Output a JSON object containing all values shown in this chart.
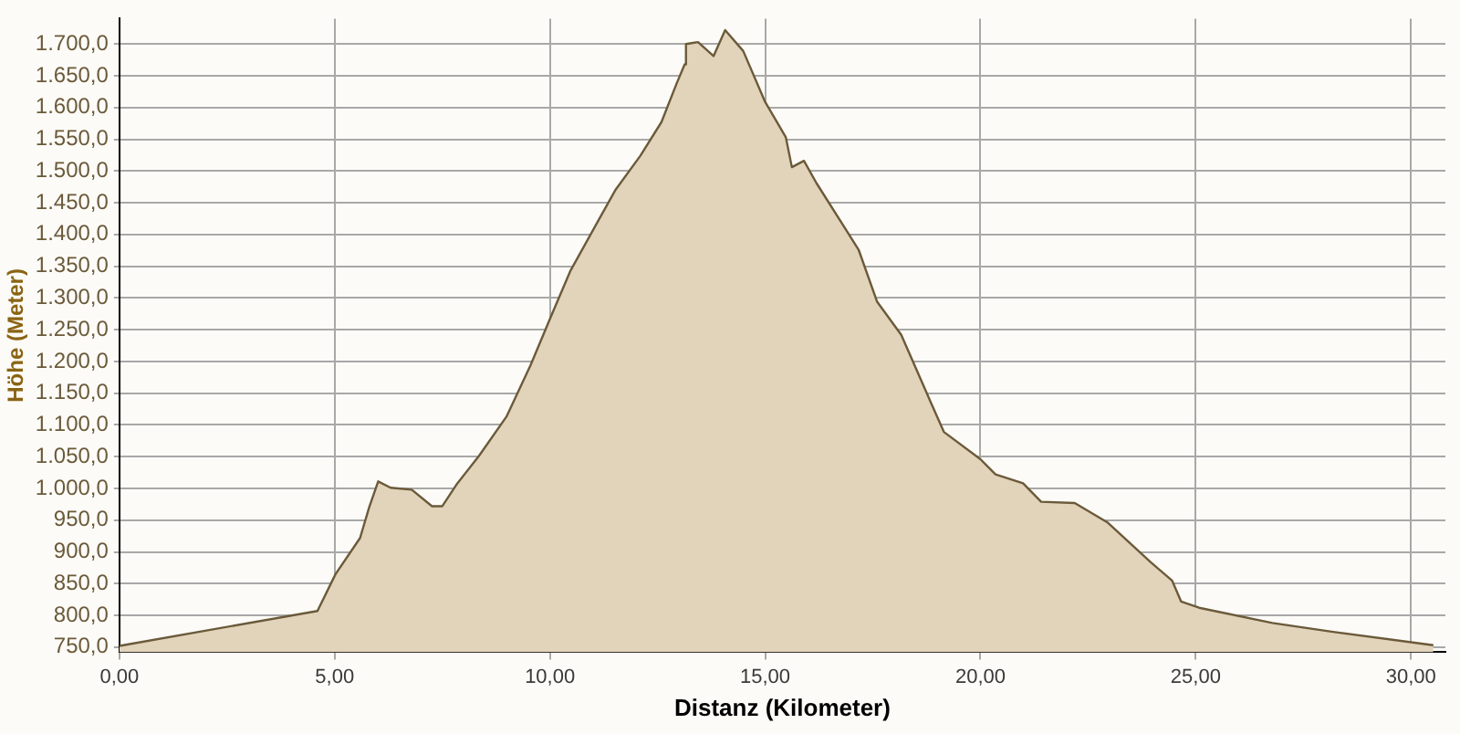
{
  "chart_data": {
    "type": "area",
    "xlabel": "Distanz (Kilometer)",
    "ylabel": "Höhe (Meter)",
    "x": [
      0,
      4.6,
      5.02,
      5.59,
      5.8,
      6.01,
      6.3,
      6.79,
      7.26,
      7.5,
      7.85,
      8.35,
      8.99,
      9.55,
      10.05,
      10.47,
      11.1,
      11.53,
      12.1,
      12.59,
      12.95,
      13.13,
      13.16,
      13.44,
      13.8,
      14.07,
      14.49,
      14.99,
      15.48,
      15.62,
      15.9,
      16.19,
      17.17,
      17.6,
      18.16,
      18.87,
      19.15,
      20.0,
      20.35,
      20.99,
      21.41,
      22.19,
      22.96,
      23.95,
      24.45,
      24.66,
      25.08,
      26.78,
      28.19,
      30.52
    ],
    "series": [
      {
        "color": "#6b5a3a",
        "values": [
          752,
          807,
          865,
          922,
          970,
          1011,
          1001,
          998,
          972,
          972,
          1008,
          1051,
          1113,
          1194,
          1275,
          1342,
          1419,
          1471,
          1524,
          1577,
          1639,
          1668,
          1700,
          1703,
          1681,
          1722,
          1689,
          1610,
          1553,
          1506,
          1516,
          1481,
          1376,
          1294,
          1242,
          1132,
          1089,
          1046,
          1022,
          1008,
          979,
          977,
          946,
          884,
          855,
          822,
          812,
          788,
          774,
          753
        ]
      }
    ],
    "xlim": [
      0,
      30.8
    ],
    "xticks": [
      {
        "value": 0,
        "label": "0,00"
      },
      {
        "value": 5,
        "label": "5,00"
      },
      {
        "value": 10,
        "label": "10,00"
      },
      {
        "value": 15,
        "label": "15,00"
      },
      {
        "value": 20,
        "label": "20,00"
      },
      {
        "value": 25,
        "label": "25,00"
      },
      {
        "value": 30,
        "label": "30,00"
      }
    ],
    "ylim": [
      742,
      1740
    ],
    "yticks": [
      {
        "value": 750,
        "label": "750,0"
      },
      {
        "value": 800,
        "label": "800,0"
      },
      {
        "value": 850,
        "label": "850,0"
      },
      {
        "value": 900,
        "label": "900,0"
      },
      {
        "value": 950,
        "label": "950,0"
      },
      {
        "value": 1000,
        "label": "1.000,0"
      },
      {
        "value": 1050,
        "label": "1.050,0"
      },
      {
        "value": 1100,
        "label": "1.100,0"
      },
      {
        "value": 1150,
        "label": "1.150,0"
      },
      {
        "value": 1200,
        "label": "1.200,0"
      },
      {
        "value": 1250,
        "label": "1.250,0"
      },
      {
        "value": 1300,
        "label": "1.300,0"
      },
      {
        "value": 1350,
        "label": "1.350,0"
      },
      {
        "value": 1400,
        "label": "1.400,0"
      },
      {
        "value": 1450,
        "label": "1.450,0"
      },
      {
        "value": 1500,
        "label": "1.500,0"
      },
      {
        "value": 1550,
        "label": "1.550,0"
      },
      {
        "value": 1600,
        "label": "1.600,0"
      },
      {
        "value": 1650,
        "label": "1.650,0"
      },
      {
        "value": 1700,
        "label": "1.700,0"
      }
    ],
    "grid": true,
    "legend": false,
    "marker": "none",
    "line_style": "solid"
  }
}
